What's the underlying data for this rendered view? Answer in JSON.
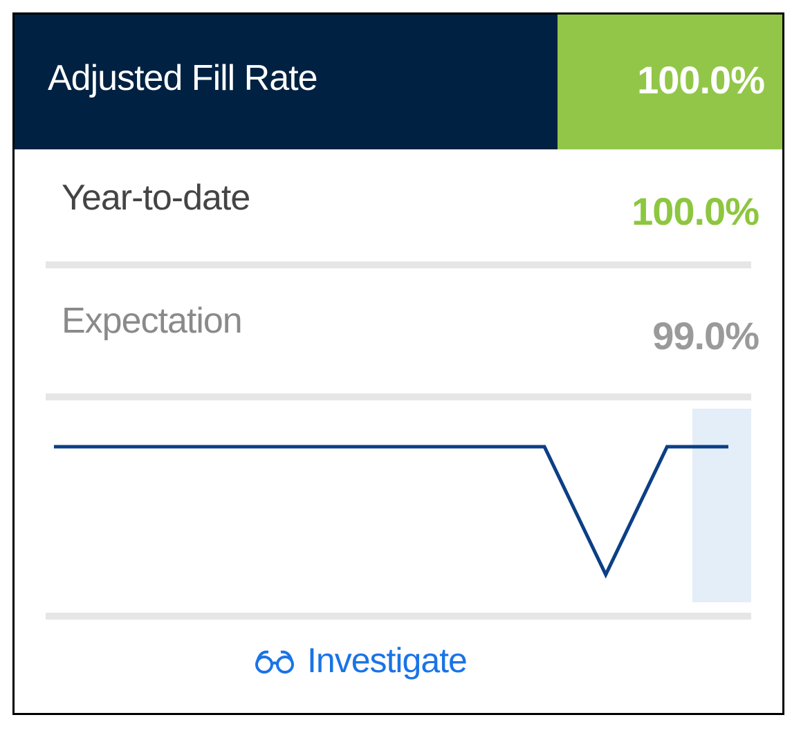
{
  "card": {
    "title": "Adjusted Fill Rate",
    "title_value": "100.0%",
    "rows": [
      {
        "label": "Year-to-date",
        "value": "100.0%"
      },
      {
        "label": "Expectation",
        "value": "99.0%"
      }
    ],
    "sparkline": {
      "type": "line",
      "values": [
        100,
        100,
        100,
        100,
        100,
        100,
        100,
        100,
        100,
        98,
        100,
        100
      ],
      "ylim": [
        98,
        100
      ],
      "color": "#0b3f86"
    },
    "link": "Investigate"
  }
}
